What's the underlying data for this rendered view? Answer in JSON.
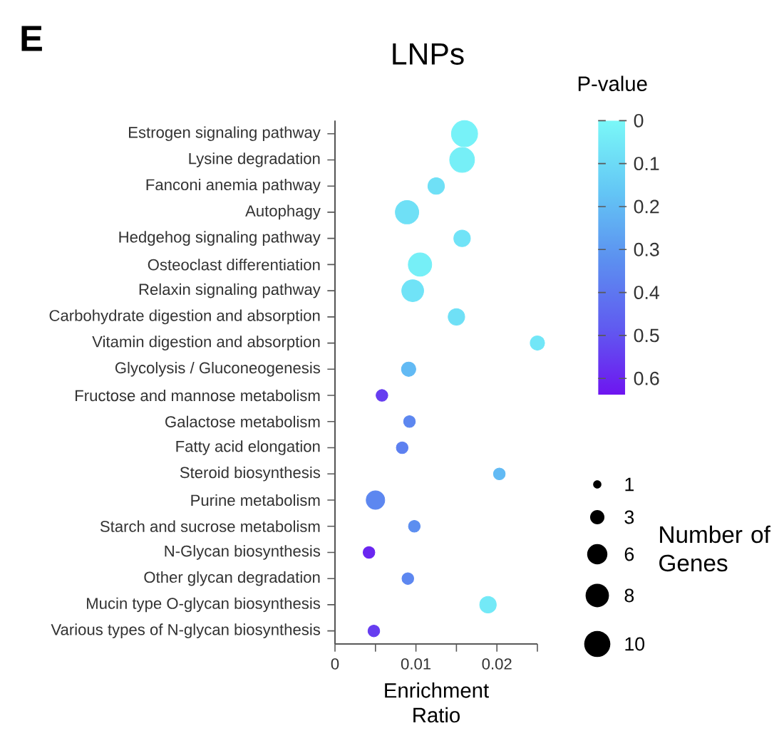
{
  "chart_data": {
    "type": "bubble",
    "orientation": "horizontal",
    "title": "LNPs",
    "xlabel": "Enrichment Ratio",
    "clabel": "P-value",
    "legend_title": "Number of Genes",
    "annotations": [
      "E"
    ],
    "categories": [
      "Estrogen signaling pathway",
      "Lysine degradation",
      "Fanconi anemia pathway",
      "Autophagy",
      "Hedgehog signaling pathway",
      "Osteoclast differentiation",
      "Relaxin signaling pathway",
      "Carbohydrate digestion and absorption",
      "Vitamin digestion and absorption",
      "Glycolysis / Gluconeogenesis",
      "Fructose and mannose metabolism",
      "Galactose metabolism",
      "Fatty acid elongation",
      "Steroid biosynthesis",
      "Purine metabolism",
      "Starch and sucrose metabolism",
      "N-Glycan biosynthesis",
      "Other glycan degradation",
      "Mucin type O-glycan biosynthesis",
      "Various types of N-glycan biosynthesis"
    ],
    "values": [
      0.016,
      0.0157,
      0.0125,
      0.0089,
      0.0157,
      0.0105,
      0.0096,
      0.015,
      0.025,
      0.0091,
      0.0058,
      0.0092,
      0.0083,
      0.0203,
      0.005,
      0.0098,
      0.0042,
      0.009,
      0.0189,
      0.0048
    ],
    "sizes": [
      10,
      9,
      4,
      8,
      4,
      8,
      7,
      4,
      3,
      3,
      2,
      2,
      2,
      2,
      5,
      2,
      2,
      2,
      4,
      2
    ],
    "cvalues": [
      0.02,
      0.03,
      0.08,
      0.08,
      0.07,
      0.03,
      0.07,
      0.08,
      0.06,
      0.2,
      0.55,
      0.35,
      0.37,
      0.2,
      0.35,
      0.33,
      0.6,
      0.35,
      0.05,
      0.55
    ],
    "size_legend": [
      1,
      3,
      6,
      8,
      10
    ],
    "clim": [
      0,
      0.64
    ],
    "cticks": [
      0,
      0.1,
      0.2,
      0.3,
      0.4,
      0.5,
      0.6
    ],
    "xlim": [
      0,
      0.025
    ],
    "xticks": [
      0,
      {
        "value": 0.005,
        "label": null
      },
      0.01,
      {
        "value": 0.015,
        "label": null
      },
      0.02,
      {
        "value": 0.025,
        "label": null
      }
    ]
  }
}
